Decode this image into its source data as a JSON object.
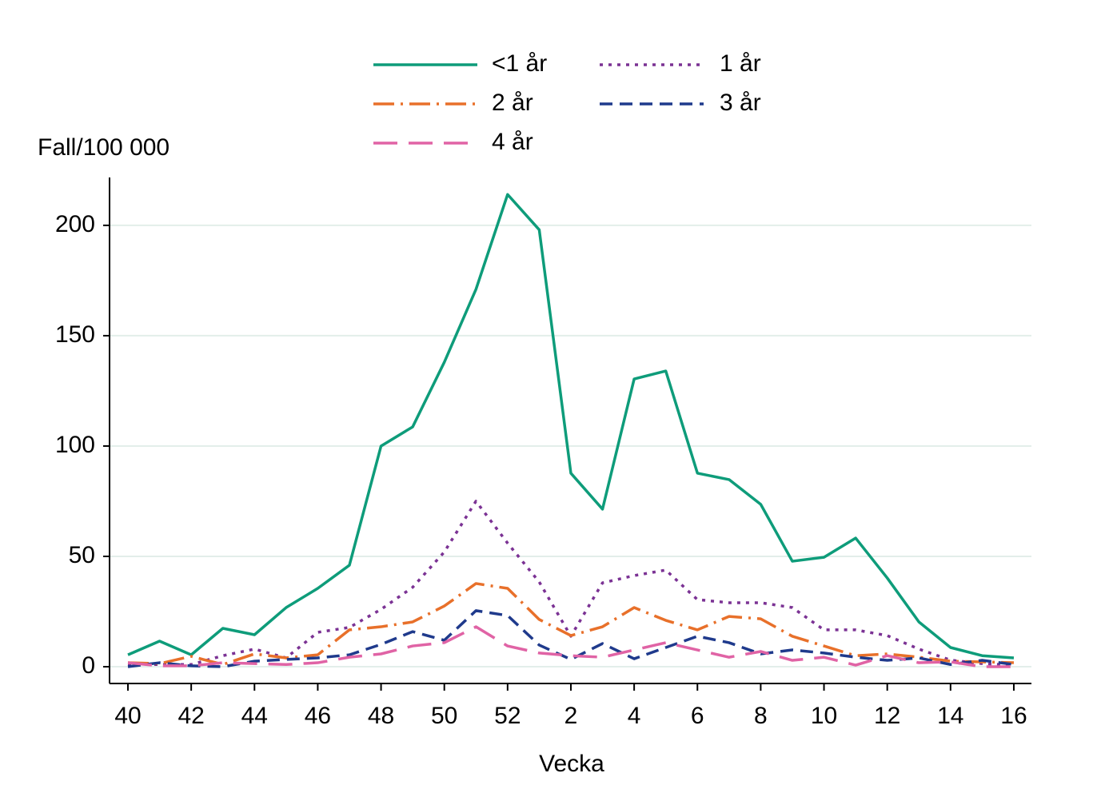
{
  "chart_data": {
    "type": "line",
    "y_label": "Fall/100 000",
    "x_label": "Vecka",
    "categories": [
      "40",
      null,
      "42",
      null,
      "44",
      null,
      "46",
      null,
      "48",
      null,
      "50",
      null,
      "52",
      null,
      "2",
      null,
      "4",
      null,
      "6",
      null,
      "8",
      null,
      "10",
      null,
      "12",
      null,
      "14",
      null,
      "16"
    ],
    "series": [
      {
        "name": "<1 år",
        "color": "#0e9c7a",
        "style": "solid",
        "values": [
          5.4,
          11.6,
          5.4,
          17.4,
          14.5,
          26.8,
          35.5,
          46,
          100,
          108.7,
          138,
          171,
          214,
          198,
          87.7,
          71.4,
          130.4,
          134,
          87.7,
          84.8,
          73.6,
          47.8,
          49.6,
          58.3,
          40.2,
          20.3,
          8.7,
          5,
          4
        ]
      },
      {
        "name": "1 år",
        "color": "#7b3294",
        "style": "dotted",
        "values": [
          1,
          1,
          1,
          5,
          8,
          4,
          15.6,
          17.8,
          26,
          36,
          52,
          75,
          56,
          38.4,
          13.8,
          38,
          41.3,
          43.8,
          30.4,
          29,
          29,
          26.8,
          16.7,
          16.7,
          14.1,
          8,
          3,
          1.4,
          0.7
        ]
      },
      {
        "name": "2 år",
        "color": "#e8702a",
        "style": "dashdot",
        "values": [
          1.8,
          1.4,
          4.7,
          1,
          5.8,
          4,
          5.4,
          16.7,
          18.1,
          20.3,
          27.5,
          37.7,
          35.5,
          21.4,
          14.1,
          18.1,
          26.8,
          21,
          16.7,
          22.8,
          21.7,
          13.8,
          9.4,
          5,
          5.8,
          4.3,
          2.5,
          2.2,
          1.8
        ]
      },
      {
        "name": "3 år",
        "color": "#1f3a8c",
        "style": "dashed",
        "values": [
          0,
          1.8,
          0.4,
          0,
          2.5,
          3.3,
          4,
          5.4,
          10.1,
          15.9,
          12,
          25.4,
          23.2,
          9.8,
          3.3,
          10.5,
          3.6,
          8.7,
          13.8,
          10.9,
          5.8,
          7.6,
          6.2,
          4.3,
          2.9,
          4,
          1,
          2.9,
          1
        ]
      },
      {
        "name": "4 år",
        "color": "#e063a5",
        "style": "longdash",
        "values": [
          1.8,
          0.4,
          0.4,
          1.8,
          1.4,
          1,
          1.8,
          4.3,
          5.8,
          9.4,
          10.9,
          18.1,
          9.4,
          6.2,
          5,
          4.3,
          7.6,
          10.9,
          7.6,
          4.3,
          6.9,
          2.9,
          4.3,
          0.7,
          5,
          1.8,
          2.2,
          0,
          0
        ]
      }
    ],
    "ylim": [
      -7.6,
      221.7
    ],
    "yticks": [
      0,
      50,
      100,
      150,
      200
    ],
    "grid": true
  }
}
